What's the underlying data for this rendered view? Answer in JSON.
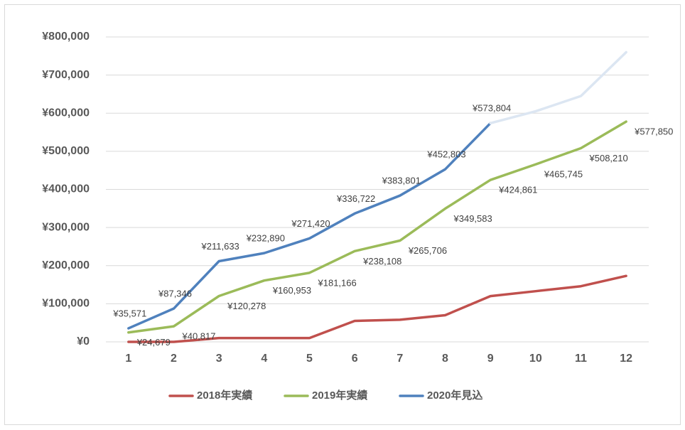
{
  "chart_data": {
    "type": "line",
    "categories": [
      "1",
      "2",
      "3",
      "4",
      "5",
      "6",
      "7",
      "8",
      "9",
      "10",
      "11",
      "12"
    ],
    "ylim": [
      0,
      800000
    ],
    "yticks": [
      {
        "value": 0,
        "label": "¥0"
      },
      {
        "value": 100000,
        "label": "¥100,000"
      },
      {
        "value": 200000,
        "label": "¥200,000"
      },
      {
        "value": 300000,
        "label": "¥300,000"
      },
      {
        "value": 400000,
        "label": "¥400,000"
      },
      {
        "value": 500000,
        "label": "¥500,000"
      },
      {
        "value": 600000,
        "label": "¥600,000"
      },
      {
        "value": 700000,
        "label": "¥700,000"
      },
      {
        "value": 800000,
        "label": "¥800,000"
      }
    ],
    "grid": true,
    "legend": "bottom",
    "series": [
      {
        "name": "2018年実績",
        "color": "#c0504d",
        "values": [
          0,
          0,
          10000,
          10000,
          10000,
          55000,
          58000,
          70000,
          120000,
          133000,
          146000,
          173000
        ]
      },
      {
        "name": "2019年実績",
        "color": "#9bbb59",
        "values": [
          24679,
          40817,
          120278,
          160953,
          181166,
          238108,
          265706,
          349583,
          424861,
          465745,
          508210,
          577850
        ],
        "value_labels": [
          "¥24,679",
          "¥40,817",
          "¥120,278",
          "¥160,953",
          "¥181,166",
          "¥238,108",
          "¥265,706",
          "¥349,583",
          "¥424,861",
          "¥465,745",
          "¥508,210",
          "¥577,850"
        ]
      },
      {
        "name": "2020年見込",
        "color": "#4f81bd",
        "values": [
          35571,
          87346,
          211633,
          232890,
          271420,
          336722,
          383801,
          452803,
          573804,
          null,
          null,
          null
        ],
        "value_labels": [
          "¥35,571",
          "¥87,346",
          "¥211,633",
          "¥232,890",
          "¥271,420",
          "¥336,722",
          "¥383,801",
          "¥452,803",
          "¥573,804",
          null,
          null,
          null
        ]
      },
      {
        "color": "#dce6f2",
        "values": [
          null,
          null,
          null,
          null,
          null,
          null,
          null,
          null,
          573804,
          605000,
          645000,
          760000
        ]
      }
    ]
  }
}
